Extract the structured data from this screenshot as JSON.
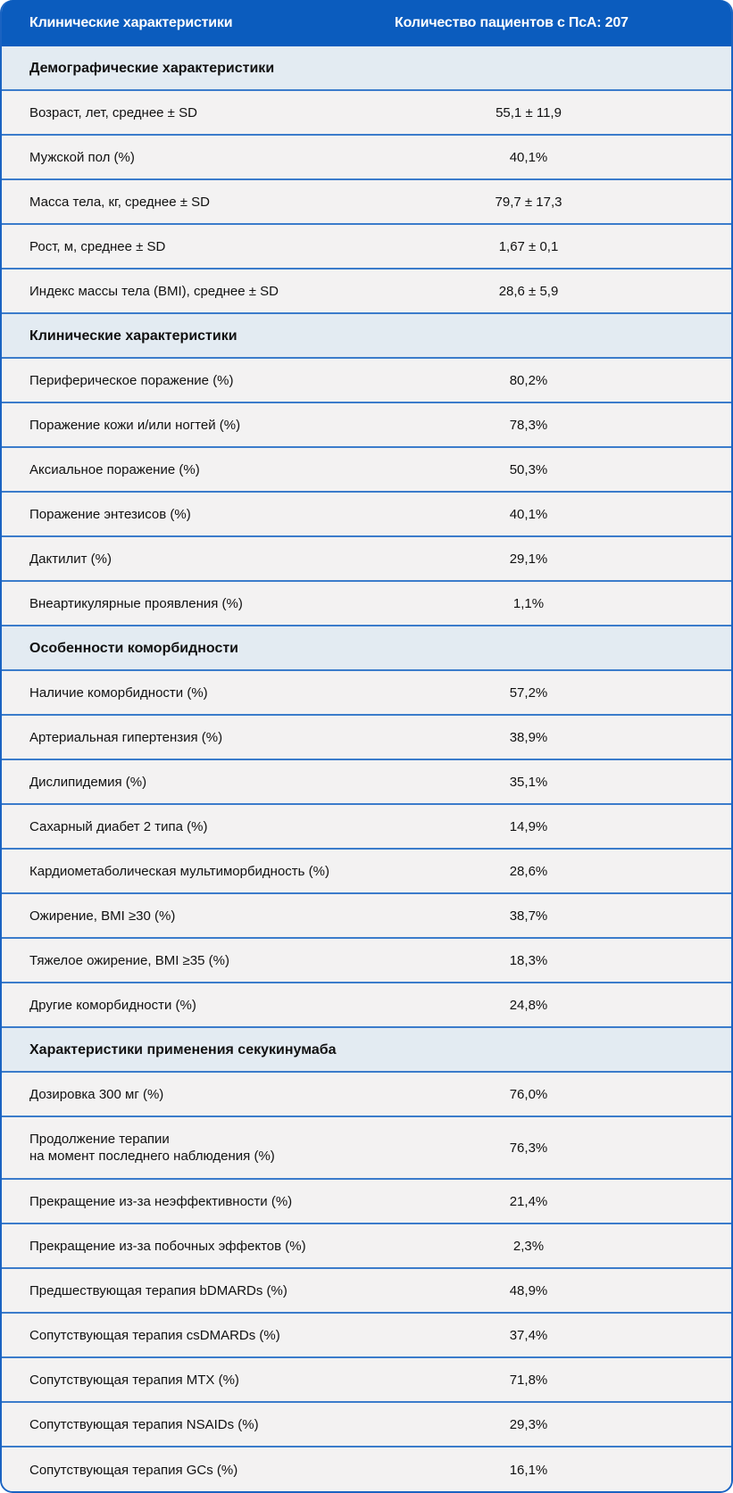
{
  "header": {
    "col1": "Клинические характеристики",
    "col2": "Количество пациентов с ПсА: 207"
  },
  "colors": {
    "header_bg": "#0b5cbe",
    "section_bg": "#e3ebf2",
    "row_bg": "#f3f2f2",
    "divider": "#3b7ccb"
  },
  "rows": [
    {
      "type": "section",
      "label": "Демографические характеристики"
    },
    {
      "type": "data",
      "label": "Возраст, лет, среднее ± SD",
      "value": "55,1 ± 11,9"
    },
    {
      "type": "data",
      "label": "Мужской пол (%)",
      "value": "40,1%"
    },
    {
      "type": "data",
      "label": "Масса тела, кг, среднее ± SD",
      "value": "79,7 ± 17,3"
    },
    {
      "type": "data",
      "label": "Рост, м, среднее ± SD",
      "value": "1,67 ± 0,1"
    },
    {
      "type": "data",
      "label": "Индекс массы тела (BMI), среднее ± SD",
      "value": "28,6 ± 5,9"
    },
    {
      "type": "section",
      "label": "Клинические характеристики"
    },
    {
      "type": "data",
      "label": "Периферическое поражение (%)",
      "value": "80,2%"
    },
    {
      "type": "data",
      "label": "Поражение кожи и/или ногтей (%)",
      "value": "78,3%"
    },
    {
      "type": "data",
      "label": "Аксиальное поражение (%)",
      "value": "50,3%"
    },
    {
      "type": "data",
      "label": "Поражение энтезисов (%)",
      "value": "40,1%"
    },
    {
      "type": "data",
      "label": "Дактилит (%)",
      "value": "29,1%"
    },
    {
      "type": "data",
      "label": "Внеартикулярные проявления (%)",
      "value": "1,1%"
    },
    {
      "type": "section",
      "label": "Особенности коморбидности"
    },
    {
      "type": "data",
      "label": "Наличие коморбидности (%)",
      "value": "57,2%"
    },
    {
      "type": "data",
      "label": "Артериальная гипертензия (%)",
      "value": "38,9%"
    },
    {
      "type": "data",
      "label": "Дислипидемия (%)",
      "value": "35,1%"
    },
    {
      "type": "data",
      "label": "Сахарный диабет 2 типа (%)",
      "value": "14,9%"
    },
    {
      "type": "data",
      "label": "Кардиометаболическая мультиморбидность (%)",
      "value": "28,6%"
    },
    {
      "type": "data",
      "label": "Ожирение, BMI ≥30 (%)",
      "value": "38,7%"
    },
    {
      "type": "data",
      "label": "Тяжелое ожирение, BMI ≥35 (%)",
      "value": "18,3%"
    },
    {
      "type": "data",
      "label": "Другие коморбидности (%)",
      "value": "24,8%"
    },
    {
      "type": "section",
      "label": "Характеристики применения секукинумаба"
    },
    {
      "type": "data",
      "label": "Дозировка 300 мг (%)",
      "value": "76,0%"
    },
    {
      "type": "data",
      "label_line1": "Продолжение терапии",
      "label_line2": "на момент последнего наблюдения (%)",
      "value": "76,3%"
    },
    {
      "type": "data",
      "label": "Прекращение из-за неэффективности (%)",
      "value": "21,4%"
    },
    {
      "type": "data",
      "label": "Прекращение из-за побочных эффектов (%)",
      "value": "2,3%"
    },
    {
      "type": "data",
      "label": "Предшествующая терапия bDMARDs (%)",
      "value": "48,9%"
    },
    {
      "type": "data",
      "label": "Сопутствующая терапия csDMARDs (%)",
      "value": "37,4%"
    },
    {
      "type": "data",
      "label": "Сопутствующая терапия MTX (%)",
      "value": "71,8%"
    },
    {
      "type": "data",
      "label": "Сопутствующая терапия NSAIDs (%)",
      "value": "29,3%"
    },
    {
      "type": "data",
      "label": "Сопутствующая терапия GCs (%)",
      "value": "16,1%"
    }
  ]
}
